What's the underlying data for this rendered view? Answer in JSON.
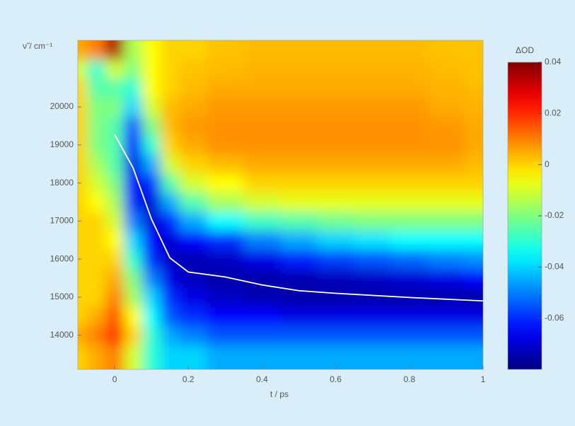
{
  "chart_data": {
    "type": "heatmap",
    "colormap": "jet",
    "x_label": "t / ps",
    "y_label": "ν̃ / cm⁻¹",
    "colorbar_label": "ΔOD",
    "xlim": [
      -0.1,
      1
    ],
    "ylim": [
      13100,
      21750
    ],
    "xticks": [
      0,
      0.2,
      0.4,
      0.6,
      0.8,
      1
    ],
    "yticks": [
      14000,
      15000,
      16000,
      17000,
      18000,
      19000,
      20000
    ],
    "clim": [
      -0.08,
      0.04
    ],
    "cticks": [
      0.04,
      0.02,
      0,
      -0.02,
      -0.04,
      -0.06
    ],
    "x": [
      -0.1,
      -0.05,
      0,
      0.05,
      0.1,
      0.15,
      0.2,
      0.3,
      0.4,
      0.5,
      0.6,
      0.7,
      0.8,
      0.9,
      1
    ],
    "y": [
      13500,
      14000,
      14500,
      15000,
      15500,
      16000,
      16500,
      17000,
      17500,
      18000,
      18500,
      19000,
      19500,
      20000,
      20500,
      21000,
      21500
    ],
    "z": [
      [
        0,
        0.005,
        0.01,
        -0.01,
        -0.03,
        -0.04,
        -0.04,
        -0.045,
        -0.045,
        -0.045,
        -0.045,
        -0.045,
        -0.045,
        -0.045,
        -0.045
      ],
      [
        0.005,
        0.01,
        0.02,
        0,
        -0.03,
        -0.045,
        -0.05,
        -0.055,
        -0.055,
        -0.055,
        -0.055,
        -0.055,
        -0.055,
        -0.055,
        -0.055
      ],
      [
        0,
        0.005,
        0.015,
        -0.005,
        -0.035,
        -0.055,
        -0.06,
        -0.065,
        -0.065,
        -0.068,
        -0.068,
        -0.068,
        -0.068,
        -0.068,
        -0.068
      ],
      [
        0,
        0,
        0.01,
        -0.015,
        -0.04,
        -0.06,
        -0.068,
        -0.072,
        -0.074,
        -0.075,
        -0.075,
        -0.075,
        -0.075,
        -0.075,
        -0.075
      ],
      [
        0,
        0,
        0.005,
        -0.02,
        -0.05,
        -0.068,
        -0.073,
        -0.075,
        -0.075,
        -0.074,
        -0.073,
        -0.072,
        -0.07,
        -0.068,
        -0.065
      ],
      [
        0,
        0,
        0,
        -0.03,
        -0.06,
        -0.072,
        -0.074,
        -0.072,
        -0.068,
        -0.062,
        -0.058,
        -0.055,
        -0.053,
        -0.05,
        -0.048
      ],
      [
        0,
        0,
        -0.005,
        -0.04,
        -0.065,
        -0.07,
        -0.065,
        -0.06,
        -0.05,
        -0.045,
        -0.04,
        -0.038,
        -0.035,
        -0.035,
        -0.035
      ],
      [
        0,
        0,
        -0.01,
        -0.05,
        -0.07,
        -0.062,
        -0.045,
        -0.035,
        -0.028,
        -0.025,
        -0.022,
        -0.02,
        -0.02,
        -0.02,
        -0.02
      ],
      [
        0,
        -0.005,
        -0.015,
        -0.06,
        -0.07,
        -0.045,
        -0.025,
        -0.015,
        -0.01,
        -0.008,
        -0.008,
        -0.008,
        -0.008,
        -0.008,
        -0.008
      ],
      [
        0,
        -0.01,
        -0.02,
        -0.065,
        -0.06,
        -0.025,
        -0.01,
        -0.005,
        0,
        0,
        0,
        0,
        0,
        0,
        0
      ],
      [
        0,
        -0.015,
        -0.025,
        -0.068,
        -0.045,
        -0.01,
        0,
        0.003,
        0.005,
        0.005,
        0.005,
        0.005,
        0.005,
        0.005,
        0.003
      ],
      [
        0,
        -0.02,
        -0.025,
        -0.065,
        -0.03,
        0,
        0.005,
        0.008,
        0.008,
        0.008,
        0.008,
        0.008,
        0.008,
        0.008,
        0.005
      ],
      [
        0,
        -0.02,
        -0.025,
        -0.055,
        -0.02,
        0.003,
        0.007,
        0.008,
        0.008,
        0.008,
        0.008,
        0.008,
        0.008,
        0.007,
        0.005
      ],
      [
        0,
        -0.02,
        -0.02,
        -0.04,
        -0.01,
        0.003,
        0.005,
        0.007,
        0.007,
        0.007,
        0.007,
        0.007,
        0.007,
        0.005,
        0.004
      ],
      [
        0,
        -0.025,
        -0.025,
        -0.03,
        -0.005,
        0,
        0.003,
        0.005,
        0.005,
        0.005,
        0.005,
        0.005,
        0.005,
        0.004,
        0.003
      ],
      [
        -0.01,
        -0.03,
        -0.01,
        -0.02,
        -0.005,
        0,
        0.002,
        0.003,
        0.004,
        0.004,
        0.004,
        0.004,
        0.004,
        0.003,
        0.002
      ],
      [
        0.005,
        0.01,
        0.035,
        -0.015,
        -0.005,
        0,
        0,
        0.002,
        0.003,
        0.003,
        0.003,
        0.003,
        0.003,
        0.002,
        0.002
      ]
    ],
    "line": {
      "color": "#ffffff",
      "x": [
        0,
        0.05,
        0.1,
        0.15,
        0.2,
        0.3,
        0.4,
        0.5,
        0.6,
        0.8,
        1
      ],
      "y": [
        19275,
        18400,
        17050,
        16030,
        15660,
        15530,
        15320,
        15170,
        15100,
        14990,
        14900
      ]
    }
  }
}
